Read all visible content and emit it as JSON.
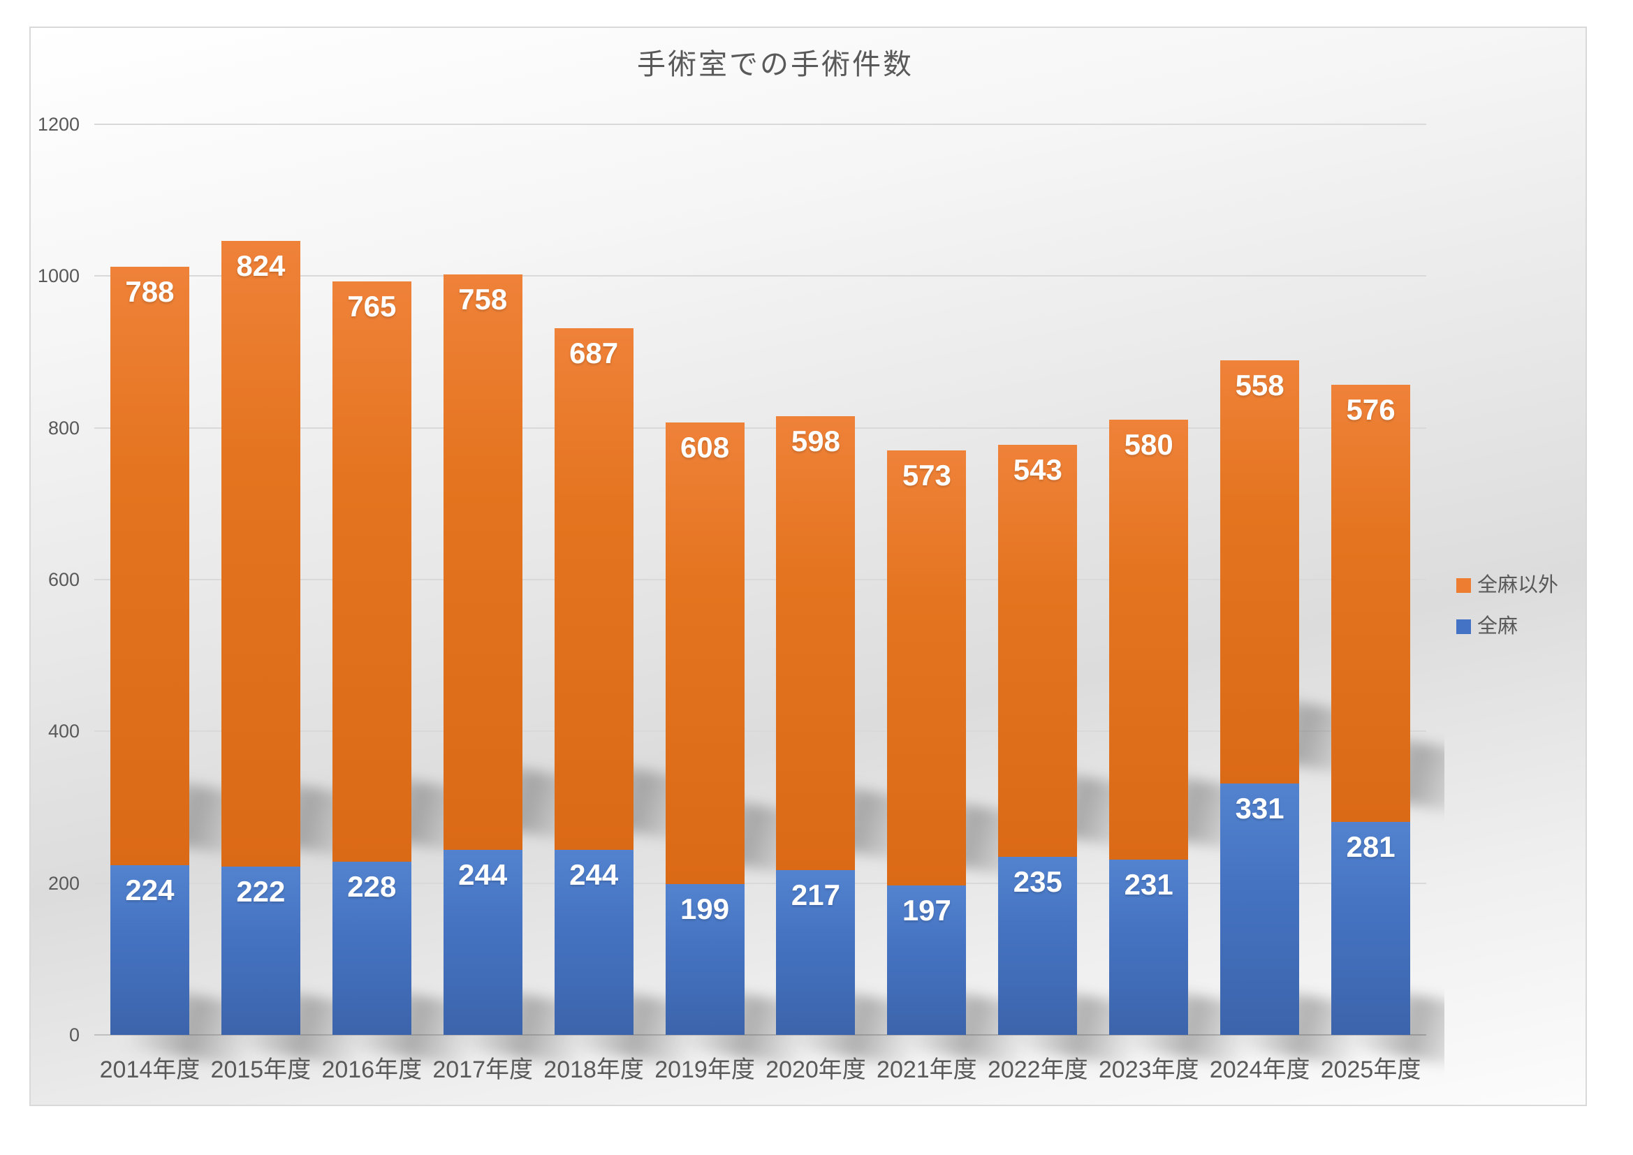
{
  "window": {
    "background": "#FFFFFF",
    "frame_border_color": "#D9D9D9"
  },
  "chart_data": {
    "type": "bar",
    "stacked": true,
    "title": "手術室での手術件数",
    "categories": [
      "2014年度",
      "2015年度",
      "2016年度",
      "2017年度",
      "2018年度",
      "2019年度",
      "2020年度",
      "2021年度",
      "2022年度",
      "2023年度",
      "2024年度",
      "2025年度"
    ],
    "series": [
      {
        "name": "全麻",
        "color": "#4472C4",
        "values": [
          224,
          222,
          228,
          244,
          244,
          199,
          217,
          197,
          235,
          231,
          331,
          281
        ]
      },
      {
        "name": "全麻以外",
        "color": "#ED7D31",
        "values": [
          788,
          824,
          765,
          758,
          687,
          608,
          598,
          573,
          543,
          580,
          558,
          576
        ]
      }
    ],
    "totals": [
      1012,
      1046,
      993,
      1002,
      931,
      807,
      815,
      770,
      778,
      811,
      889,
      857
    ],
    "ylim": [
      0,
      1200
    ],
    "yticks": [
      0,
      200,
      400,
      600,
      800,
      1000,
      1200
    ],
    "grid": true,
    "gridline_color": "#D9D9D9",
    "axis_text_color": "#595959",
    "data_label_style": "inside-end white bold",
    "legend_position": "right",
    "bar_shadow": "perspective gray"
  },
  "legend": {
    "items": [
      {
        "label": "全麻以外",
        "color": "#ED7D31"
      },
      {
        "label": "全麻",
        "color": "#4472C4"
      }
    ]
  }
}
